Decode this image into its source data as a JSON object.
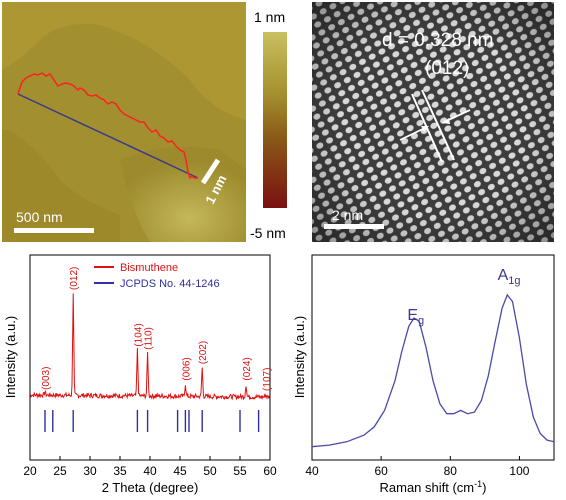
{
  "afm": {
    "scale_bar_label": "500 nm",
    "step_label": "1 nm",
    "colorbar_max": "1 nm",
    "colorbar_min": "-5 nm",
    "colors": {
      "high": "#c8c060",
      "mid": "#9a7a1e",
      "low": "#7a1010",
      "profile": "#ff2020",
      "line": "#3a3a8a"
    }
  },
  "hrtem": {
    "d_spacing_label": "d = 0.328 nm",
    "plane_label": "(012)",
    "scale_bar_label": "2 nm"
  },
  "chart_data": [
    {
      "type": "line",
      "xlabel": "2 Theta (degree)",
      "ylabel": "Intensity (a.u.)",
      "xlim": [
        20,
        60
      ],
      "x_ticks": [
        "20",
        "25",
        "30",
        "35",
        "40",
        "45",
        "50",
        "55",
        "60"
      ],
      "legend": {
        "placement": "top-center",
        "entries": [
          "Bismuthene",
          "JCPDS No. 44-1246"
        ]
      },
      "series": [
        {
          "name": "Bismuthene",
          "color": "#e01010",
          "peaks": [
            {
              "x": 22.5,
              "height": 0.03,
              "label": "(003)"
            },
            {
              "x": 27.2,
              "height": 1.0,
              "label": "(012)"
            },
            {
              "x": 37.9,
              "height": 0.45,
              "label": "(104)"
            },
            {
              "x": 39.6,
              "height": 0.42,
              "label": "(110)"
            },
            {
              "x": 45.9,
              "height": 0.12,
              "label": "(006)"
            },
            {
              "x": 48.7,
              "height": 0.28,
              "label": "(202)"
            },
            {
              "x": 56.0,
              "height": 0.12,
              "label": "(024)"
            },
            {
              "x": 59.3,
              "height": 0.02,
              "label": "(107)"
            }
          ],
          "baseline": 0.13
        },
        {
          "name": "JCPDS No. 44-1246",
          "color": "#3030a0",
          "stick_positions": [
            22.5,
            23.8,
            27.2,
            37.9,
            39.6,
            44.6,
            45.9,
            46.5,
            48.7,
            55.0,
            58.1
          ]
        }
      ]
    },
    {
      "type": "line",
      "xlabel": "Raman shift (cm",
      "xlabel_sup": "-1",
      "xlabel_end": ")",
      "ylabel": "Intensity (a.u.)",
      "xlim": [
        40,
        110
      ],
      "x_ticks": [
        "40",
        "60",
        "80",
        "100"
      ],
      "peak_labels": [
        {
          "base": "E",
          "sub": "g",
          "x": 70
        },
        {
          "base": "A",
          "sub": "1g",
          "x": 97
        }
      ],
      "series": [
        {
          "color": "#4a4aa8",
          "points": [
            [
              40,
              0.02
            ],
            [
              45,
              0.03
            ],
            [
              50,
              0.05
            ],
            [
              55,
              0.09
            ],
            [
              58,
              0.14
            ],
            [
              61,
              0.24
            ],
            [
              64,
              0.42
            ],
            [
              66,
              0.6
            ],
            [
              68,
              0.75
            ],
            [
              69.5,
              0.8
            ],
            [
              71,
              0.78
            ],
            [
              73,
              0.62
            ],
            [
              75,
              0.42
            ],
            [
              77,
              0.28
            ],
            [
              79,
              0.22
            ],
            [
              81,
              0.22
            ],
            [
              83,
              0.24
            ],
            [
              85,
              0.22
            ],
            [
              87,
              0.23
            ],
            [
              89,
              0.3
            ],
            [
              91,
              0.45
            ],
            [
              93,
              0.66
            ],
            [
              95,
              0.86
            ],
            [
              96.5,
              0.94
            ],
            [
              98,
              0.9
            ],
            [
              100,
              0.68
            ],
            [
              102,
              0.4
            ],
            [
              104,
              0.2
            ],
            [
              106,
              0.1
            ],
            [
              108,
              0.06
            ],
            [
              110,
              0.05
            ]
          ]
        }
      ]
    }
  ]
}
